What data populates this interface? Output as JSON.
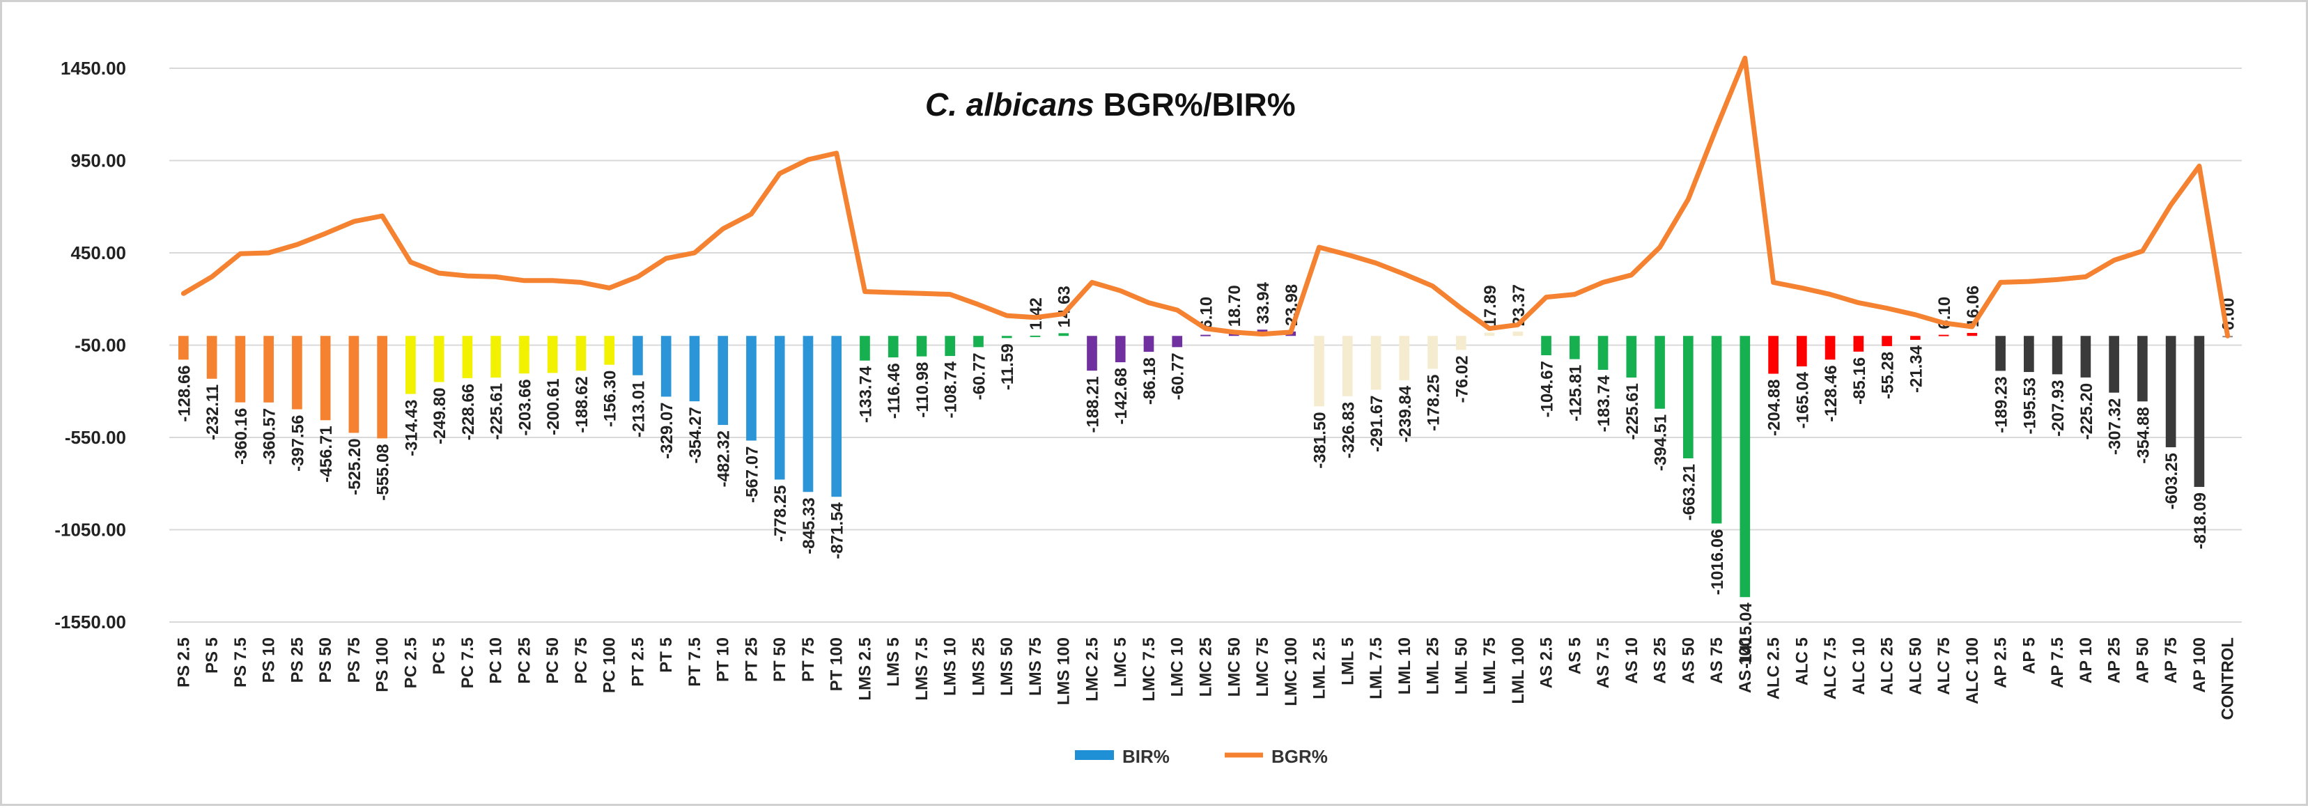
{
  "chart_data": {
    "type": "bar+line",
    "title_italic": "C. albicans",
    "title_rest": " BGR%/BIR%",
    "ylim": [
      -1550,
      1450
    ],
    "yticks": [
      1450,
      950,
      450,
      -50,
      -550,
      -1050,
      -1550
    ],
    "ytick_labels": [
      "1450.00",
      "950.00",
      "450.00",
      "-50.00",
      "-550.00",
      "-1050.00",
      "-1550.00"
    ],
    "categories": [
      "PS 2.5",
      "PS 5",
      "PS 7.5",
      "PS 10",
      "PS 25",
      "PS 50",
      "PS 75",
      "PS 100",
      "PC 2.5",
      "PC 5",
      "PC 7.5",
      "PC 10",
      "PC 25",
      "PC 50",
      "PC 75",
      "PC 100",
      "PT 2.5",
      "PT 5",
      "PT 7.5",
      "PT 10",
      "PT 25",
      "PT 50",
      "PT 75",
      "PT 100",
      "LMS 2.5",
      "LMS 5",
      "LMS 7.5",
      "LMS 10",
      "LMS 25",
      "LMS 50",
      "LMS 75",
      "LMS 100",
      "LMC 2.5",
      "LMC 5",
      "LMC 7.5",
      "LMC 10",
      "LMC 25",
      "LMC 50",
      "LMC 75",
      "LMC 100",
      "LML 2.5",
      "LML 5",
      "LML 7.5",
      "LML 10",
      "LML 25",
      "LML 50",
      "LML 75",
      "LML 100",
      "AS 2.5",
      "AS 5",
      "AS 7.5",
      "AS 10",
      "AS 25",
      "AS 50",
      "AS 75",
      "AS 100",
      "ALC 2.5",
      "ALC 5",
      "ALC 7.5",
      "ALC 10",
      "ALC 25",
      "ALC 50",
      "ALC 75",
      "ALC 100",
      "AP 2.5",
      "AP 5",
      "AP 7.5",
      "AP 10",
      "AP 25",
      "AP 50",
      "AP 75",
      "AP 100",
      "CONTROL"
    ],
    "series": [
      {
        "name": "BIR%",
        "type": "bar",
        "legend_color": "#1f8fd6",
        "values": [
          -128.66,
          -232.11,
          -360.16,
          -360.57,
          -397.56,
          -456.71,
          -525.2,
          -555.08,
          -314.43,
          -249.8,
          -228.66,
          -225.61,
          -203.66,
          -200.61,
          -188.62,
          -156.3,
          -213.01,
          -329.07,
          -354.27,
          -482.32,
          -567.07,
          -778.25,
          -845.33,
          -871.54,
          -133.74,
          -116.46,
          -110.98,
          -108.74,
          -60.77,
          -11.59,
          1.42,
          14.63,
          -188.21,
          -142.68,
          -86.18,
          -60.77,
          6.1,
          18.7,
          33.94,
          23.98,
          -381.5,
          -326.83,
          -291.67,
          -239.84,
          -178.25,
          -76.02,
          17.89,
          23.37,
          -104.67,
          -125.81,
          -183.74,
          -225.61,
          -394.51,
          -663.21,
          -1016.06,
          -1415.04,
          -204.88,
          -165.04,
          -128.46,
          -85.16,
          -55.28,
          -21.34,
          6.1,
          16.06,
          -189.23,
          -195.53,
          -207.93,
          -225.2,
          -307.32,
          -354.88,
          -603.25,
          -818.09,
          0
        ],
        "labels": [
          "-128.66",
          "-232.11",
          "-360.16",
          "-360.57",
          "-397.56",
          "-456.71",
          "-525.20",
          "-555.08",
          "-314.43",
          "-249.80",
          "-228.66",
          "-225.61",
          "-203.66",
          "-200.61",
          "-188.62",
          "-156.30",
          "-213.01",
          "-329.07",
          "-354.27",
          "-482.32",
          "-567.07",
          "-778.25",
          "-845.33",
          "-871.54",
          "-133.74",
          "-116.46",
          "-110.98",
          "-108.74",
          "-60.77",
          "-11.59",
          "1.42",
          "14.63",
          "-188.21",
          "-142.68",
          "-86.18",
          "-60.77",
          "6.10",
          "18.70",
          "33.94",
          "23.98",
          "-381.50",
          "-326.83",
          "-291.67",
          "-239.84",
          "-178.25",
          "-76.02",
          "17.89",
          "23.37",
          "-104.67",
          "-125.81",
          "-183.74",
          "-225.61",
          "-394.51",
          "-663.21",
          "-1016.06",
          "-1415.04",
          "-204.88",
          "-165.04",
          "-128.46",
          "-85.16",
          "-55.28",
          "-21.34",
          "6.10",
          "16.06",
          "-189.23",
          "-195.53",
          "-207.93",
          "-225.20",
          "-307.32",
          "-354.88",
          "-603.25",
          "-818.09",
          "0.00"
        ],
        "group_colors": {
          "PS": "#f58231",
          "PC": "#f2f200",
          "PT": "#2b95d8",
          "LMS": "#16b050",
          "LMC": "#7030a0",
          "LML": "#f5ecd0",
          "AS": "#16b050",
          "ALC": "#ff0000",
          "AP": "#3a3a3a",
          "CONTROL": "#888888"
        }
      },
      {
        "name": "BGR%",
        "type": "line",
        "color": "#f58231",
        "values": [
          230,
          320,
          445,
          450,
          495,
          555,
          620,
          650,
          400,
          340,
          325,
          320,
          300,
          300,
          290,
          260,
          320,
          420,
          450,
          580,
          660,
          880,
          955,
          990,
          240,
          235,
          230,
          225,
          170,
          110,
          100,
          120,
          290,
          245,
          180,
          140,
          40,
          20,
          10,
          20,
          480,
          440,
          395,
          335,
          270,
          150,
          40,
          60,
          210,
          225,
          290,
          330,
          480,
          740,
          1130,
          1505,
          290,
          260,
          225,
          180,
          150,
          115,
          70,
          50,
          290,
          295,
          305,
          320,
          410,
          460,
          710,
          920,
          0
        ]
      }
    ],
    "legend": [
      "BIR%",
      "BGR%"
    ],
    "legend_position": "bottom-center"
  }
}
